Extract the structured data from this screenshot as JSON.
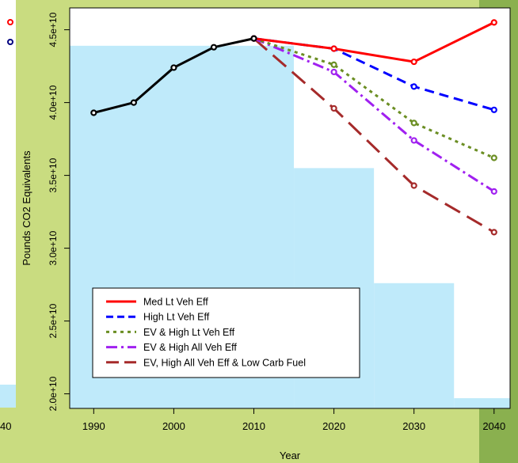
{
  "chart_data": {
    "type": "line",
    "title": "",
    "xlabel": "Year",
    "ylabel": "Pounds CO2 Equivalents",
    "xlim": [
      1987,
      2042
    ],
    "ylim": [
      19000000000,
      46500000000
    ],
    "x_ticks": [
      1990,
      2000,
      2010,
      2020,
      2030,
      2040
    ],
    "x_tick_labels": [
      "1990",
      "2000",
      "2010",
      "2020",
      "2030",
      "2040"
    ],
    "y_ticks": [
      20000000000,
      25000000000,
      30000000000,
      35000000000,
      40000000000,
      45000000000
    ],
    "y_tick_labels": [
      "2.0e+10",
      "2.5e+10",
      "3.0e+10",
      "3.5e+10",
      "4.0e+10",
      "4.5e+10"
    ],
    "grid": false,
    "legend_position": "bottom-left",
    "historical": {
      "color": "#000000",
      "x": [
        1990,
        1995,
        2000,
        2005,
        2010
      ],
      "values": [
        39300000000,
        40000000000,
        42400000000,
        43800000000,
        44400000000
      ]
    },
    "series": [
      {
        "name": "Med Lt Veh Eff",
        "color": "#ff0000",
        "dash": "solid",
        "x": [
          2010,
          2020,
          2030,
          2040
        ],
        "values": [
          44400000000,
          43700000000,
          42800000000,
          45500000000
        ]
      },
      {
        "name": "High Lt Veh Eff",
        "color": "#0000ff",
        "dash": "dashed",
        "x": [
          2010,
          2020,
          2030,
          2040
        ],
        "values": [
          44400000000,
          43700000000,
          41100000000,
          39500000000
        ]
      },
      {
        "name": "EV & High Lt Veh Eff",
        "color": "#6b8e23",
        "dash": "dotted",
        "x": [
          2010,
          2020,
          2030,
          2040
        ],
        "values": [
          44400000000,
          42600000000,
          38600000000,
          36200000000
        ]
      },
      {
        "name": "EV & High All Veh Eff",
        "color": "#a020f0",
        "dash": "dotdash",
        "x": [
          2010,
          2020,
          2030,
          2040
        ],
        "values": [
          44400000000,
          42100000000,
          37400000000,
          33900000000
        ]
      },
      {
        "name": "EV, High All Veh Eff & Low Carb Fuel",
        "color": "#a52a2a",
        "dash": "longdash",
        "x": [
          2010,
          2020,
          2030,
          2040
        ],
        "values": [
          44400000000,
          39600000000,
          34300000000,
          31100000000
        ]
      }
    ],
    "background_steps": {
      "color": "#bfeafa",
      "x": [
        1987,
        2015,
        2025,
        2035,
        2042
      ],
      "levels": [
        43900000000,
        35500000000,
        27600000000,
        19700000000
      ]
    }
  },
  "left_panel": {
    "tick_label": "40",
    "point_colors": [
      "#ff0000",
      "#000080"
    ]
  }
}
